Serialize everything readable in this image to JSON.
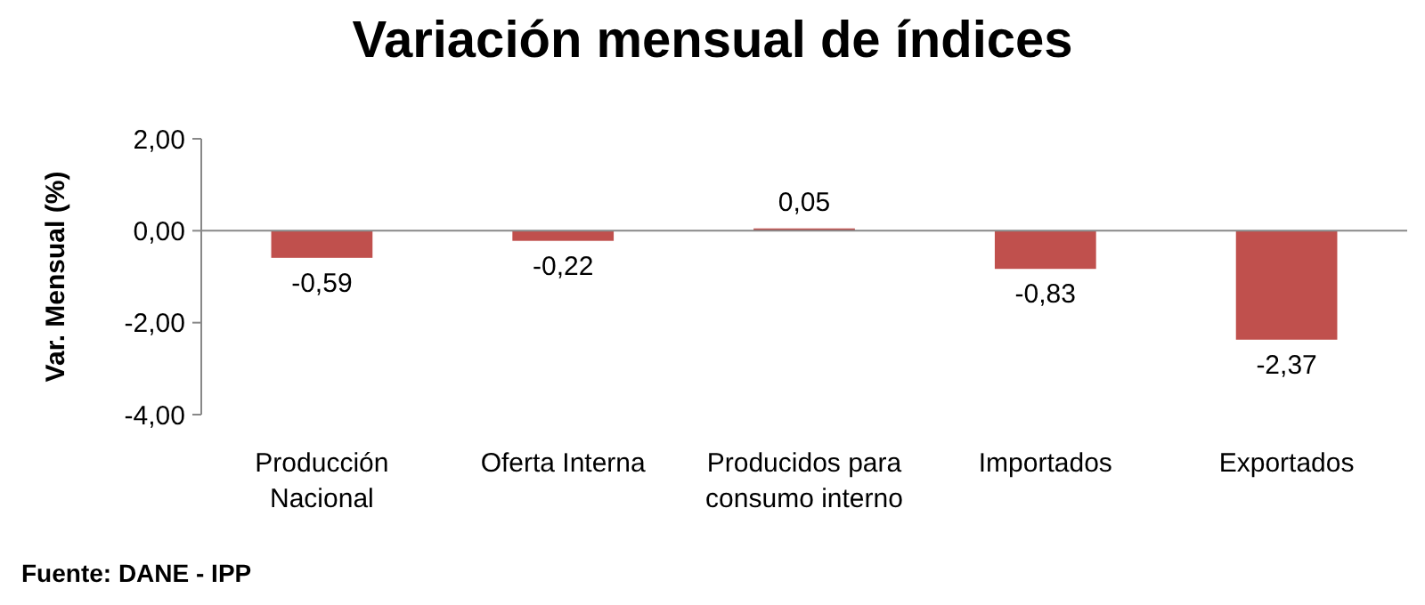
{
  "chart_data": {
    "type": "bar",
    "title": "Variación mensual de índices",
    "ylabel": "Var. Mensual (%)",
    "categories": [
      "Producción Nacional",
      "Oferta Interna",
      "Producidos para consumo interno",
      "Importados",
      "Exportados"
    ],
    "values": [
      -0.59,
      -0.22,
      0.05,
      -0.83,
      -2.37
    ],
    "value_labels": [
      "-0,59",
      "-0,22",
      "0,05",
      "-0,83",
      "-2,37"
    ],
    "color": "#c0504d",
    "ylim": [
      -4,
      2
    ],
    "yticks": [
      {
        "value": -4,
        "label": "-4,00"
      },
      {
        "value": -2,
        "label": "-2,00"
      },
      {
        "value": 0,
        "label": "0,00"
      },
      {
        "value": 2,
        "label": "2,00"
      }
    ],
    "annotations": [
      "Fuente: DANE - IPP"
    ]
  }
}
